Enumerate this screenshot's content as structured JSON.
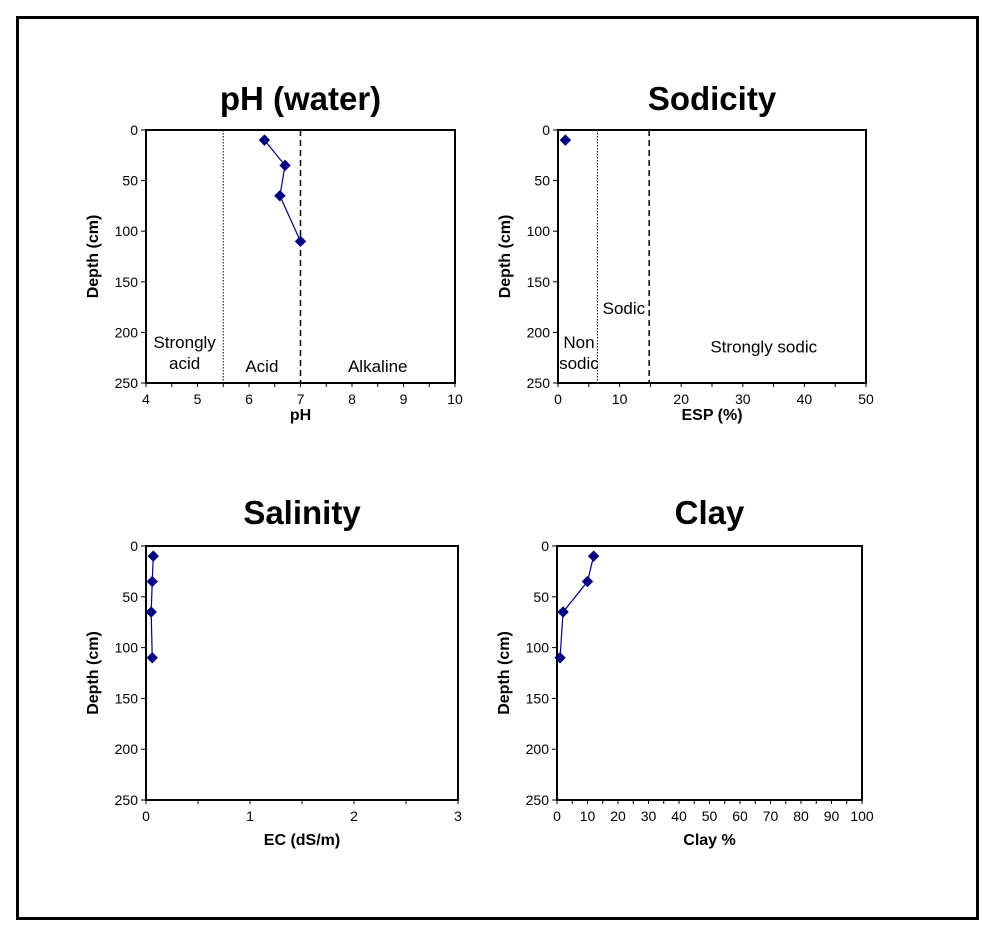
{
  "chart_data": [
    {
      "id": "ph",
      "type": "line",
      "title": "pH (water)",
      "xlabel": "pH",
      "ylabel": "Depth (cm)",
      "xlim": [
        4,
        10
      ],
      "ylim": [
        0,
        250
      ],
      "y_inverted": true,
      "xticks": [
        4,
        5,
        6,
        7,
        8,
        9,
        10
      ],
      "x_minor_step": 0.5,
      "yticks": [
        0,
        50,
        100,
        150,
        200,
        250
      ],
      "grid": false,
      "series": [
        {
          "name": "pH",
          "color": "#000080",
          "marker": "diamond",
          "points": [
            {
              "x": 6.3,
              "y": 10
            },
            {
              "x": 6.7,
              "y": 35
            },
            {
              "x": 6.6,
              "y": 65
            },
            {
              "x": 7.0,
              "y": 110
            }
          ]
        }
      ],
      "reference_lines": [
        {
          "x": 5.5,
          "style": "dotted"
        },
        {
          "x": 7.0,
          "style": "dashed"
        }
      ],
      "zones": [
        {
          "lines": [
            "Strongly",
            "acid"
          ],
          "x": 4.75,
          "y": 220
        },
        {
          "lines": [
            "Acid"
          ],
          "x": 6.25,
          "y": 233
        },
        {
          "lines": [
            "Alkaline"
          ],
          "x": 8.5,
          "y": 233
        }
      ]
    },
    {
      "id": "sodicity",
      "type": "scatter",
      "title": "Sodicity",
      "xlabel": "ESP (%)",
      "ylabel": "Depth (cm)",
      "xlim": [
        0,
        50
      ],
      "ylim": [
        0,
        250
      ],
      "y_inverted": true,
      "xticks": [
        0,
        10,
        20,
        30,
        40,
        50
      ],
      "x_minor_step": 5,
      "yticks": [
        0,
        50,
        100,
        150,
        200,
        250
      ],
      "grid": false,
      "series": [
        {
          "name": "ESP",
          "color": "#000080",
          "marker": "diamond",
          "points": [
            {
              "x": 1.2,
              "y": 10
            }
          ]
        }
      ],
      "reference_lines": [
        {
          "x": 6.4,
          "style": "dotted"
        },
        {
          "x": 14.8,
          "style": "dashed"
        }
      ],
      "zones": [
        {
          "lines": [
            "Non",
            "sodic"
          ],
          "x": 3.4,
          "y": 220
        },
        {
          "lines": [
            "Sodic"
          ],
          "x": 10.7,
          "y": 176
        },
        {
          "lines": [
            "Strongly sodic"
          ],
          "x": 33.4,
          "y": 214
        }
      ]
    },
    {
      "id": "salinity",
      "type": "line",
      "title": "Salinity",
      "xlabel": "EC (dS/m)",
      "ylabel": "Depth (cm)",
      "xlim": [
        0,
        3
      ],
      "ylim": [
        0,
        250
      ],
      "y_inverted": true,
      "xticks": [
        0,
        1,
        2,
        3
      ],
      "x_minor_step": 0.5,
      "yticks": [
        0,
        50,
        100,
        150,
        200,
        250
      ],
      "grid": false,
      "series": [
        {
          "name": "EC",
          "color": "#000080",
          "marker": "diamond",
          "points": [
            {
              "x": 0.07,
              "y": 10
            },
            {
              "x": 0.06,
              "y": 35
            },
            {
              "x": 0.05,
              "y": 65
            },
            {
              "x": 0.06,
              "y": 110
            }
          ]
        }
      ],
      "reference_lines": [],
      "zones": []
    },
    {
      "id": "clay",
      "type": "line",
      "title": "Clay",
      "xlabel": "Clay %",
      "ylabel": "Depth (cm)",
      "xlim": [
        0,
        100
      ],
      "ylim": [
        0,
        250
      ],
      "y_inverted": true,
      "xticks": [
        0,
        10,
        20,
        30,
        40,
        50,
        60,
        70,
        80,
        90,
        100
      ],
      "x_minor_step": 5,
      "yticks": [
        0,
        50,
        100,
        150,
        200,
        250
      ],
      "grid": false,
      "series": [
        {
          "name": "Clay",
          "color": "#000080",
          "marker": "diamond",
          "points": [
            {
              "x": 12,
              "y": 10
            },
            {
              "x": 10,
              "y": 35
            },
            {
              "x": 2,
              "y": 65
            },
            {
              "x": 1,
              "y": 110
            }
          ]
        }
      ],
      "reference_lines": [],
      "zones": []
    }
  ]
}
